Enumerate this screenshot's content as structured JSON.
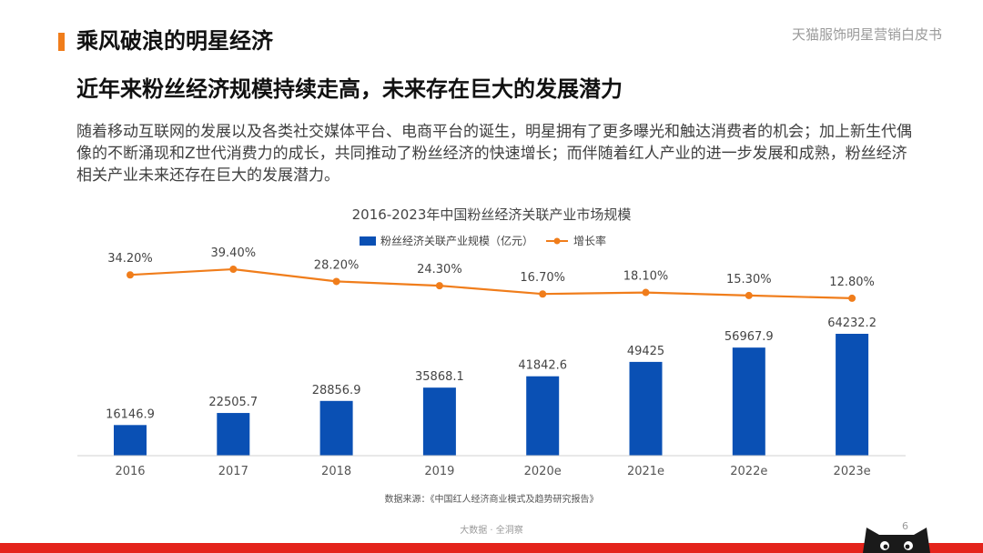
{
  "header": {
    "section_title": "乘风破浪的明星经济",
    "brand": "天猫服饰明星营销白皮书"
  },
  "main": {
    "headline": "近年来粉丝经济规模持续走高，未来存在巨大的发展潜力",
    "body": "随着移动互联网的发展以及各类社交媒体平台、电商平台的诞生，明星拥有了更多曝光和触达消费者的机会；加上新生代偶像的不断涌现和Z世代消费力的成长，共同推动了粉丝经济的快速增长；而伴随着红人产业的进一步发展和成熟，粉丝经济相关产业未来还存在巨大的发展潜力。"
  },
  "chart_data": {
    "type": "bar",
    "title": "2016-2023年中国粉丝经济关联产业市场规模",
    "categories": [
      "2016",
      "2017",
      "2018",
      "2019",
      "2020e",
      "2021e",
      "2022e",
      "2023e"
    ],
    "series": [
      {
        "name": "粉丝经济关联产业规模（亿元）",
        "type": "bar",
        "color": "#0a50b4",
        "values": [
          16146.9,
          22505.7,
          28856.9,
          35868.1,
          41842.6,
          49425,
          56967.9,
          64232.2
        ],
        "labels": [
          "16146.9",
          "22505.7",
          "28856.9",
          "35868.1",
          "41842.6",
          "49425",
          "56967.9",
          "64232.2"
        ]
      },
      {
        "name": "增长率",
        "type": "line",
        "color": "#f07d1b",
        "values": [
          34.2,
          39.4,
          28.2,
          24.3,
          16.7,
          18.1,
          15.3,
          12.8
        ],
        "labels": [
          "34.20%",
          "39.40%",
          "28.20%",
          "24.30%",
          "16.70%",
          "18.10%",
          "15.30%",
          "12.80%"
        ]
      }
    ],
    "legend_position": "top-center",
    "grid": false
  },
  "footer": {
    "source": "数据来源：《中国红人经济商业模式及趋势研究报告》",
    "brand": "大数据 · 全洞察",
    "page_number": "6"
  },
  "colors": {
    "accent_orange": "#f07d1b",
    "bar_blue": "#0a50b4",
    "bottom_bar_red": "#e4231b"
  }
}
